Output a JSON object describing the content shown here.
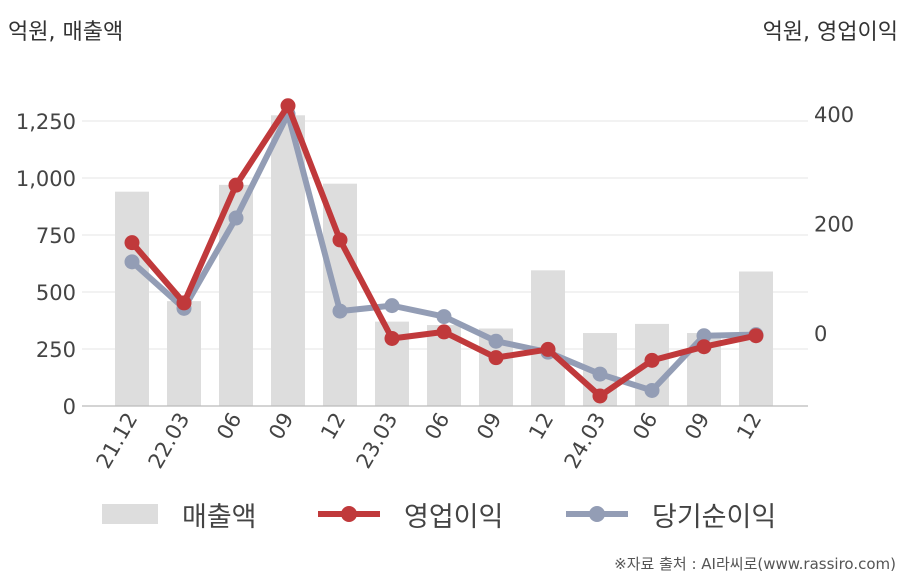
{
  "units": {
    "left": "억원, 매출액",
    "right": "억원, 영업이익"
  },
  "colors": {
    "sales": "#dddddd",
    "op": "#c0393b",
    "net": "#939db5",
    "grid": "#e6e6e6",
    "axis": "#bbbbbb"
  },
  "legend": [
    {
      "label": "매출액",
      "kind": "bar",
      "color": "#dddddd"
    },
    {
      "label": "영업이익",
      "kind": "line",
      "color": "#c0393b"
    },
    {
      "label": "당기순이익",
      "kind": "line",
      "color": "#939db5"
    }
  ],
  "source": "※자료 출처 : AI라씨로(www.rassiro.com)",
  "chart_data": {
    "type": "bar",
    "categories": [
      "21.12",
      "22.03",
      "06",
      "09",
      "12",
      "23.03",
      "06",
      "09",
      "12",
      "24.03",
      "06",
      "09",
      "12"
    ],
    "series": [
      {
        "name": "매출액",
        "type": "bar",
        "axis": "left",
        "values": [
          940,
          460,
          970,
          1275,
          975,
          370,
          355,
          340,
          595,
          320,
          360,
          320,
          590
        ]
      },
      {
        "name": "영업이익",
        "type": "line",
        "axis": "right",
        "values": [
          165,
          55,
          270,
          415,
          170,
          -10,
          2,
          -45,
          -30,
          -115,
          -50,
          -25,
          -5
        ]
      },
      {
        "name": "당기순이익",
        "type": "line",
        "axis": "right",
        "values": [
          130,
          45,
          210,
          400,
          40,
          50,
          30,
          -15,
          -35,
          -75,
          -105,
          -5,
          -3
        ]
      }
    ],
    "y_left": {
      "ylim": [
        0,
        1250
      ],
      "ticks": [
        "0",
        "250",
        "500",
        "750",
        "1,000",
        "1,250"
      ]
    },
    "y_right": {
      "ylim": [
        -130,
        420
      ],
      "ticks": [
        "0",
        "200",
        "400"
      ]
    },
    "grid": true,
    "legend_position": "bottom"
  }
}
